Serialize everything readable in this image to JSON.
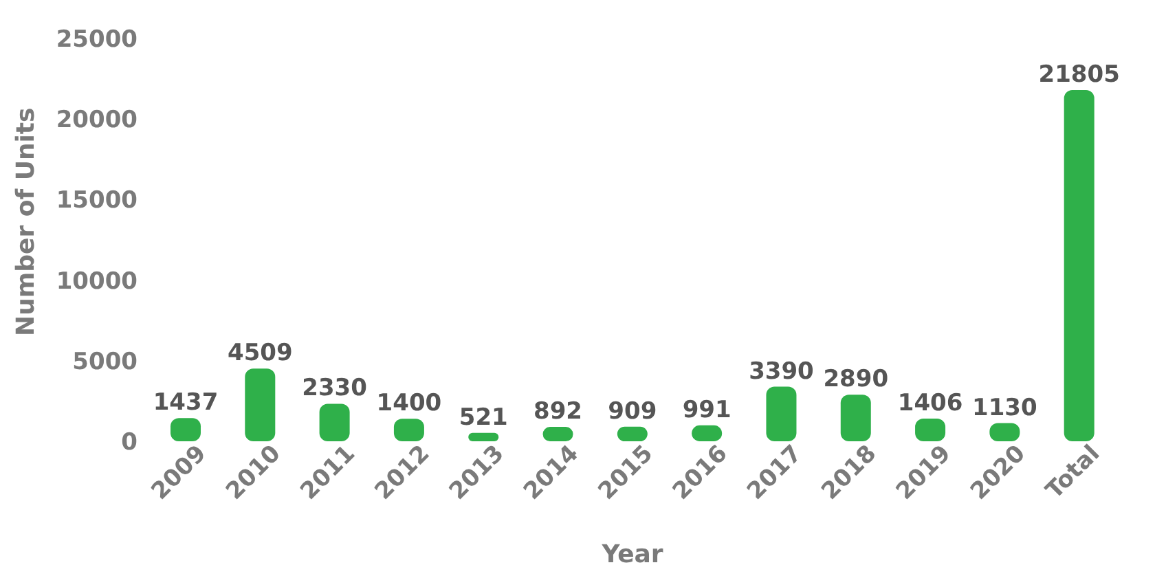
{
  "chart_data": {
    "type": "bar",
    "xlabel": "Year",
    "ylabel": "Number of Units",
    "categories": [
      "2009",
      "2010",
      "2011",
      "2012",
      "2013",
      "2014",
      "2015",
      "2016",
      "2017",
      "2018",
      "2019",
      "2020",
      "Total"
    ],
    "values": [
      1437,
      4509,
      2330,
      1400,
      521,
      892,
      909,
      991,
      3390,
      2890,
      1406,
      1130,
      21805
    ],
    "color": "#2fb04a",
    "ylim": [
      0,
      25000
    ],
    "yticks": [
      0,
      5000,
      10000,
      15000,
      20000,
      25000
    ],
    "grid": false,
    "data_labels": true
  }
}
